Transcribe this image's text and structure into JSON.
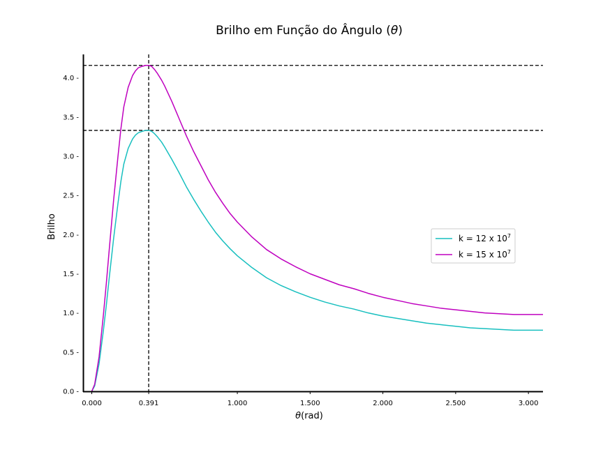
{
  "chart_data": {
    "type": "line",
    "title_parts": [
      "Brilho em Função do Ângulo (",
      "θ",
      ")"
    ],
    "xlabel_parts": [
      "θ",
      "(rad)"
    ],
    "ylabel": "Brilho",
    "xlim": [
      -0.06,
      3.1
    ],
    "ylim": [
      0.0,
      4.3
    ],
    "x_ticks": [
      {
        "value": 0.0,
        "label": "0.000"
      },
      {
        "value": 0.391,
        "label": "0.391"
      },
      {
        "value": 1.0,
        "label": "1.000"
      },
      {
        "value": 1.5,
        "label": "1.500"
      },
      {
        "value": 2.0,
        "label": "2.000"
      },
      {
        "value": 2.5,
        "label": "2.500"
      },
      {
        "value": 3.0,
        "label": "3.000"
      }
    ],
    "y_ticks": [
      {
        "value": 0.0,
        "label": "0.0 -"
      },
      {
        "value": 0.5,
        "label": "0.5 -"
      },
      {
        "value": 1.0,
        "label": "1.0 -"
      },
      {
        "value": 1.5,
        "label": "1.5 -"
      },
      {
        "value": 2.0,
        "label": "2.0 -"
      },
      {
        "value": 2.5,
        "label": "2.5 -"
      },
      {
        "value": 3.0,
        "label": "3.0 -"
      },
      {
        "value": 3.5,
        "label": "3.5 -"
      },
      {
        "value": 4.0,
        "label": "4.0 -"
      }
    ],
    "reference_lines": {
      "vertical_x": 0.391,
      "horizontal_y": [
        4.16,
        3.33
      ]
    },
    "legend_position": "center-right",
    "series": [
      {
        "legend_label": {
          "base": "k = 12 x 10",
          "exp": "7"
        },
        "color": "#17bfbf",
        "x": [
          0.0,
          0.02,
          0.05,
          0.08,
          0.1,
          0.12,
          0.15,
          0.18,
          0.2,
          0.22,
          0.25,
          0.28,
          0.3,
          0.32,
          0.35,
          0.37,
          0.391,
          0.41,
          0.43,
          0.45,
          0.48,
          0.5,
          0.55,
          0.6,
          0.65,
          0.7,
          0.75,
          0.8,
          0.85,
          0.9,
          0.95,
          1.0,
          1.1,
          1.2,
          1.3,
          1.4,
          1.5,
          1.6,
          1.7,
          1.8,
          1.9,
          2.0,
          2.1,
          2.2,
          2.3,
          2.4,
          2.5,
          2.6,
          2.7,
          2.8,
          2.9,
          3.0,
          3.1
        ],
        "y": [
          0.0,
          0.07,
          0.35,
          0.78,
          1.1,
          1.45,
          1.95,
          2.4,
          2.68,
          2.9,
          3.1,
          3.22,
          3.27,
          3.3,
          3.32,
          3.33,
          3.33,
          3.32,
          3.29,
          3.25,
          3.18,
          3.12,
          2.96,
          2.79,
          2.61,
          2.45,
          2.3,
          2.16,
          2.03,
          1.92,
          1.82,
          1.73,
          1.58,
          1.45,
          1.35,
          1.27,
          1.2,
          1.14,
          1.09,
          1.05,
          1.0,
          0.96,
          0.93,
          0.9,
          0.87,
          0.85,
          0.83,
          0.81,
          0.8,
          0.79,
          0.78,
          0.78,
          0.78
        ]
      },
      {
        "legend_label": {
          "base": "k = 15 x 10",
          "exp": "7"
        },
        "color": "#bf00bf",
        "x": [
          0.0,
          0.02,
          0.05,
          0.08,
          0.1,
          0.12,
          0.15,
          0.18,
          0.2,
          0.22,
          0.25,
          0.28,
          0.3,
          0.32,
          0.35,
          0.37,
          0.391,
          0.41,
          0.43,
          0.45,
          0.48,
          0.5,
          0.55,
          0.6,
          0.65,
          0.7,
          0.75,
          0.8,
          0.85,
          0.9,
          0.95,
          1.0,
          1.1,
          1.2,
          1.3,
          1.4,
          1.5,
          1.6,
          1.7,
          1.8,
          1.9,
          2.0,
          2.1,
          2.2,
          2.3,
          2.4,
          2.5,
          2.6,
          2.7,
          2.8,
          2.9,
          3.0,
          3.1
        ],
        "y": [
          0.0,
          0.09,
          0.44,
          0.98,
          1.38,
          1.81,
          2.44,
          3.0,
          3.35,
          3.63,
          3.88,
          4.03,
          4.09,
          4.13,
          4.15,
          4.16,
          4.16,
          4.15,
          4.11,
          4.06,
          3.97,
          3.9,
          3.7,
          3.48,
          3.26,
          3.06,
          2.88,
          2.7,
          2.54,
          2.4,
          2.27,
          2.16,
          1.97,
          1.81,
          1.69,
          1.59,
          1.5,
          1.43,
          1.36,
          1.31,
          1.25,
          1.2,
          1.16,
          1.12,
          1.09,
          1.06,
          1.04,
          1.02,
          1.0,
          0.99,
          0.98,
          0.98,
          0.98
        ]
      }
    ]
  }
}
